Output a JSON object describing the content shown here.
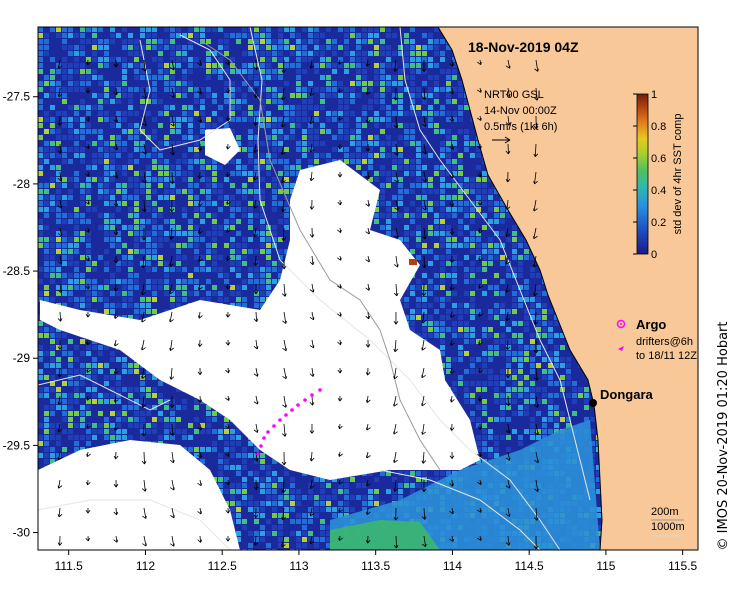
{
  "map": {
    "title": "18-Nov-2019 04Z",
    "x_axis": {
      "range": [
        111.3,
        115.6
      ],
      "ticks": [
        "111.5",
        "112",
        "112.5",
        "113",
        "113.5",
        "114",
        "114.5",
        "115",
        "115.5"
      ]
    },
    "y_axis": {
      "range": [
        -30.1,
        -27.1
      ],
      "ticks": [
        "-27.5",
        "-28",
        "-28.5",
        "-29",
        "-29.5",
        "-30"
      ]
    },
    "current_info": {
      "line1": "NRT00 GSL",
      "line2": "14-Nov 00:00Z",
      "line3": "0.5m/s (1kt 6h)"
    },
    "colorbar": {
      "label": "std dev of 4hr SST comp",
      "ticks": [
        "0",
        "0.2",
        "0.4",
        "0.6",
        "0.8",
        "1"
      ],
      "colors": [
        "#1a1a8c",
        "#1f3fb8",
        "#1f6fd6",
        "#2aa0e0",
        "#30c0c0",
        "#40c080",
        "#70cc40",
        "#b8d030",
        "#e8c020",
        "#e08020",
        "#b04010",
        "#702008"
      ]
    },
    "legend": {
      "argo_label": "Argo",
      "drifters_line1": "drifters@6h",
      "drifters_line2": "to 18/11 12Z",
      "marker_color": "#ff00ff"
    },
    "place": {
      "name": "Dongara",
      "lon": 114.93,
      "lat": -29.26
    },
    "contours": {
      "depth1": "200m",
      "depth2": "1000m"
    },
    "credit": "© IMOS 20-Nov-2019 01:20 Hobart",
    "colors": {
      "land": "#f8c898",
      "ocean_deep": "#1a2a9c",
      "no_data": "#ffffff"
    }
  }
}
